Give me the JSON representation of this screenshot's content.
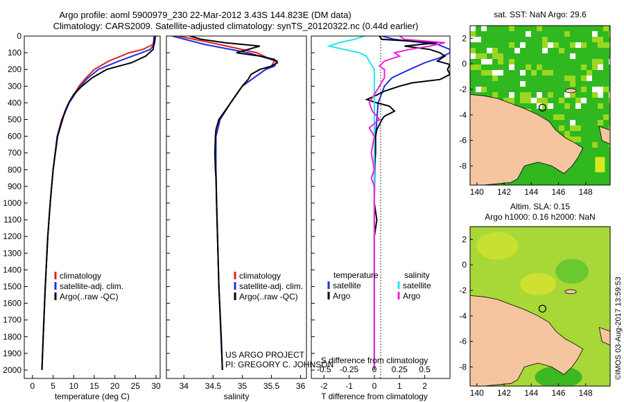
{
  "header": {
    "line1": "Argo profile: aoml 5900979_230 22-Mar-2012 3.43S 144.823E (DM data)",
    "line2": "Climatology: CARS2009. Satellite-adjusted climatology: synTS_20120322.nc (0.44d earlier)"
  },
  "colors": {
    "climatology": "#e02020",
    "satellite": "#1f2fe0",
    "argo": "#000000",
    "satellite_salinity": "#20e8e8",
    "argo_salinity": "#f020d8",
    "land": "#f5c5a0",
    "sea_green": "#2fb81f",
    "sea_yellow": "#d8e820"
  },
  "chart_data": [
    {
      "type": "line",
      "id": "temperature",
      "xlabel": "temperature (deg C)",
      "ylabel": "",
      "xlim": [
        -2,
        31
      ],
      "ylim": [
        2050,
        0
      ],
      "xticks": [
        0,
        5,
        10,
        15,
        20,
        25,
        30
      ],
      "yticks": [
        0,
        100,
        200,
        300,
        400,
        500,
        600,
        700,
        800,
        900,
        1000,
        1100,
        1200,
        1300,
        1400,
        1500,
        1600,
        1700,
        1800,
        1900,
        2000
      ],
      "legend": [
        "climatology",
        "satellite-adj. clim.",
        "Argo(..raw -QC)"
      ],
      "legend_placement": "bottom-right",
      "series": [
        {
          "name": "climatology",
          "depth": [
            0,
            50,
            80,
            100,
            150,
            200,
            250,
            300,
            400,
            500,
            600,
            800,
            1000,
            1200,
            1500,
            1800,
            2000
          ],
          "values": [
            29.6,
            29.3,
            26.8,
            23.5,
            18.5,
            15.0,
            13.0,
            11.3,
            8.8,
            7.1,
            6.0,
            5.0,
            4.3,
            3.7,
            3.1,
            2.6,
            2.3
          ]
        },
        {
          "name": "satellite-adj. clim.",
          "depth": [
            0,
            50,
            80,
            100,
            150,
            200,
            250,
            300,
            400,
            500,
            600,
            800,
            1000,
            1200,
            1500,
            1800,
            2000
          ],
          "values": [
            29.9,
            29.6,
            28.6,
            26.5,
            21.0,
            16.0,
            13.5,
            11.6,
            8.9,
            7.2,
            6.0,
            5.0,
            4.3,
            3.7,
            3.1,
            2.6,
            2.3
          ]
        },
        {
          "name": "Argo(..raw -QC)",
          "depth": [
            0,
            40,
            80,
            120,
            160,
            200,
            250,
            300,
            350,
            400,
            450,
            500,
            600,
            800,
            1000,
            1200,
            1500,
            1800,
            2000
          ],
          "values": [
            29.6,
            29.5,
            29.3,
            27.5,
            24.0,
            18.0,
            14.5,
            12.0,
            10.0,
            8.8,
            7.9,
            7.3,
            6.1,
            5.0,
            4.3,
            3.7,
            3.1,
            2.6,
            2.3
          ]
        }
      ]
    },
    {
      "type": "line",
      "id": "salinity",
      "xlabel": "salinity",
      "ylabel": "",
      "xlim": [
        33.7,
        36.1
      ],
      "ylim": [
        2050,
        0
      ],
      "xticks": [
        34,
        34.5,
        35,
        35.5,
        36
      ],
      "legend": [
        "climatology",
        "satellite-adj. clim.",
        "Argo(..raw -QC)"
      ],
      "legend_placement": "bottom-right",
      "annotation": {
        "line1": "US ARGO PROJECT",
        "line2": "PI: GREGORY C. JOHNSON"
      },
      "series": [
        {
          "name": "climatology",
          "depth": [
            0,
            50,
            100,
            150,
            180,
            200,
            250,
            300,
            400,
            500,
            600,
            800,
            1000,
            1500,
            1800,
            2000
          ],
          "values": [
            33.9,
            34.6,
            35.25,
            35.55,
            35.5,
            35.4,
            35.2,
            35.0,
            34.8,
            34.62,
            34.55,
            34.55,
            34.56,
            34.6,
            34.64,
            34.66
          ]
        },
        {
          "name": "satellite-adj. clim.",
          "depth": [
            0,
            50,
            100,
            150,
            180,
            200,
            250,
            300,
            400,
            500,
            600,
            800,
            1000,
            1500,
            1800,
            2000
          ],
          "values": [
            33.8,
            34.35,
            35.1,
            35.6,
            35.55,
            35.4,
            35.2,
            35.0,
            34.8,
            34.62,
            34.55,
            34.55,
            34.56,
            34.6,
            34.64,
            34.66
          ]
        },
        {
          "name": "Argo(..raw -QC)",
          "depth": [
            0,
            20,
            40,
            60,
            80,
            100,
            120,
            140,
            160,
            180,
            200,
            230,
            260,
            300,
            350,
            400,
            450,
            500,
            560,
            600,
            700,
            800,
            850,
            1000,
            1500,
            2000
          ],
          "values": [
            34.1,
            34.3,
            34.7,
            35.3,
            35.1,
            34.9,
            35.3,
            35.55,
            35.6,
            35.5,
            35.3,
            35.15,
            35.1,
            35.0,
            34.9,
            34.8,
            34.7,
            34.6,
            34.55,
            34.54,
            34.53,
            34.54,
            34.55,
            34.56,
            34.6,
            34.66
          ]
        }
      ]
    },
    {
      "type": "line",
      "id": "difference",
      "xlabel": "T difference from climatology",
      "xlabel2": "S difference from climatology",
      "xlim": [
        -2.5,
        3.0
      ],
      "xticks": [
        -2,
        -1,
        0,
        1,
        2
      ],
      "xlim2": [
        -0.625,
        0.75
      ],
      "xticks2": [
        -0.5,
        -0.25,
        0,
        0.25,
        0.5
      ],
      "ylim": [
        2050,
        0
      ],
      "legend_temperature": {
        "heading": "temperature",
        "items": [
          "satellite",
          "Argo"
        ]
      },
      "legend_salinity": {
        "heading": "salinity",
        "items": [
          "satellite",
          "Argo"
        ]
      },
      "legend_placement": "middle",
      "series": [
        {
          "name": "temperature satellite",
          "variable": "T",
          "depth": [
            0,
            20,
            50,
            80,
            100,
            130,
            160,
            200,
            250,
            300,
            400,
            500,
            600,
            800,
            1000,
            1500,
            2000
          ],
          "values": [
            0.3,
            0.8,
            2.5,
            3.0,
            3.0,
            2.6,
            2.0,
            1.4,
            0.7,
            0.4,
            0.15,
            0.1,
            0.05,
            0.02,
            0.0,
            0.0,
            0.0
          ]
        },
        {
          "name": "temperature Argo",
          "variable": "T",
          "depth": [
            0,
            20,
            40,
            60,
            80,
            100,
            120,
            150,
            170,
            200,
            230,
            260,
            280,
            300,
            330,
            360,
            380,
            400,
            420,
            450,
            480,
            500,
            530,
            560,
            600,
            700,
            800,
            1000,
            1100,
            1200,
            1500,
            2000
          ],
          "values": [
            0.2,
            0.3,
            2.5,
            1.2,
            2.2,
            2.6,
            2.8,
            2.5,
            3.0,
            2.9,
            3.0,
            2.6,
            1.5,
            1.0,
            0.4,
            0.0,
            -0.3,
            0.1,
            0.6,
            0.8,
            0.4,
            0.3,
            0.2,
            0.1,
            0.05,
            0.05,
            0.0,
            0.0,
            0.1,
            0.0,
            0.0,
            0.0
          ]
        },
        {
          "name": "salinity satellite",
          "variable": "S",
          "depth": [
            0,
            20,
            40,
            60,
            80,
            100,
            120,
            150,
            200,
            250,
            300,
            400,
            500,
            600,
            800,
            1000,
            1500,
            2000
          ],
          "values": [
            -0.1,
            -0.2,
            -0.35,
            -0.45,
            -0.3,
            -0.15,
            -0.08,
            -0.05,
            0.0,
            0.0,
            0.0,
            0.0,
            0.0,
            0.0,
            0.0,
            0.0,
            0.0,
            0.0
          ]
        },
        {
          "name": "salinity Argo",
          "variable": "S",
          "depth": [
            0,
            20,
            40,
            60,
            80,
            100,
            120,
            150,
            180,
            200,
            250,
            300,
            350,
            400,
            450,
            500,
            550,
            600,
            700,
            800,
            850,
            900,
            1000,
            1500,
            2000
          ],
          "values": [
            0.25,
            0.3,
            0.7,
            0.55,
            0.35,
            0.2,
            0.25,
            0.1,
            0.05,
            0.1,
            0.1,
            0.05,
            0.0,
            -0.05,
            -0.02,
            0.05,
            -0.05,
            0.0,
            -0.03,
            0.0,
            -0.03,
            0.0,
            0.0,
            0.0,
            0.0
          ]
        }
      ]
    },
    {
      "type": "heatmap",
      "id": "sst-map",
      "title": "sat. SST: NaN Argo: 29.6",
      "xticks": [
        140,
        142,
        144,
        146,
        148
      ],
      "yticks": [
        2,
        0,
        -2,
        -4,
        -6,
        -8
      ],
      "xlim": [
        139.5,
        149.8
      ],
      "ylim": [
        -9.5,
        3.0
      ],
      "marker": {
        "lon": 144.823,
        "lat": -3.43
      }
    },
    {
      "type": "heatmap",
      "id": "sla-map",
      "title_line1": "Altim. SLA: 0.15",
      "title_line2": "Argo h1000: 0.16 h2000: NaN",
      "xticks": [
        140,
        142,
        144,
        146,
        148
      ],
      "yticks": [
        2,
        0,
        -2,
        -4,
        -6,
        -8
      ],
      "xlim": [
        139.5,
        149.8
      ],
      "ylim": [
        -9.5,
        3.0
      ],
      "marker": {
        "lon": 144.823,
        "lat": -3.43
      }
    }
  ],
  "footer": {
    "stamp": "©IMOS 03-Aug-2017 13:59:53"
  }
}
